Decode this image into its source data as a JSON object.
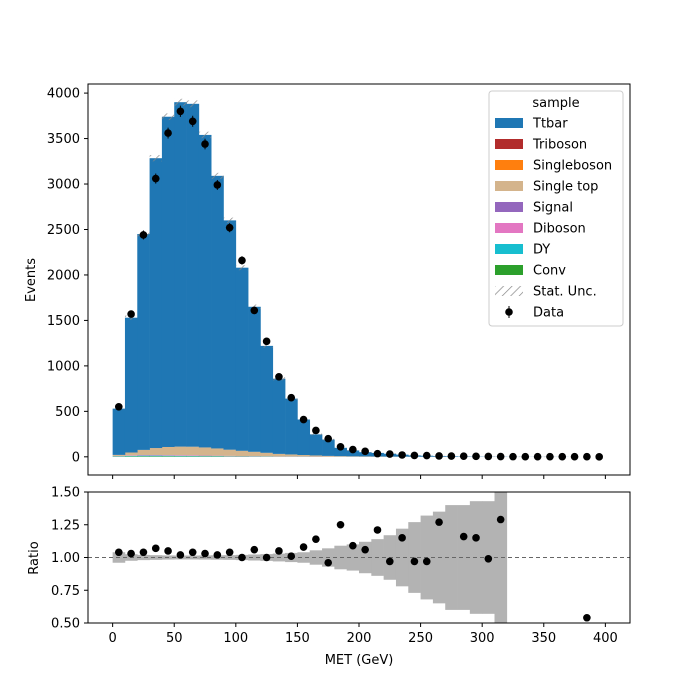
{
  "chart_data": [
    {
      "type": "stacked-histogram",
      "title": "",
      "xlabel": "",
      "ylabel": "Events",
      "xlim": [
        -20,
        420
      ],
      "ylim": [
        -200,
        4100
      ],
      "x_ticks": [
        0,
        50,
        100,
        150,
        200,
        250,
        300,
        350,
        400
      ],
      "y_ticks": [
        0,
        500,
        1000,
        1500,
        2000,
        2500,
        3000,
        3500,
        4000
      ],
      "bin_edges": [
        0,
        10,
        20,
        30,
        40,
        50,
        60,
        70,
        80,
        90,
        100,
        110,
        120,
        130,
        140,
        150,
        160,
        170,
        180,
        190,
        200,
        210,
        220,
        230,
        240,
        250,
        260,
        270,
        280,
        290,
        300,
        310,
        320,
        330,
        340,
        350,
        360,
        370,
        380,
        390,
        400
      ],
      "bin_centers": [
        5,
        15,
        25,
        35,
        45,
        55,
        65,
        75,
        85,
        95,
        105,
        115,
        125,
        135,
        145,
        155,
        165,
        175,
        185,
        195,
        205,
        215,
        225,
        235,
        245,
        255,
        265,
        275,
        285,
        295,
        305,
        315,
        325,
        335,
        345,
        355,
        365,
        375,
        385,
        395
      ],
      "series": [
        {
          "name": "Conv",
          "color": "#2ca02c",
          "values": [
            3,
            5,
            6,
            6,
            6,
            5,
            5,
            4,
            4,
            3,
            3,
            2,
            2,
            1,
            1,
            1,
            1,
            0,
            0,
            0,
            0,
            0,
            0,
            0,
            0,
            0,
            0,
            0,
            0,
            0,
            0,
            0,
            0,
            0,
            0,
            0,
            0,
            0,
            0,
            0
          ]
        },
        {
          "name": "DY",
          "color": "#17becf",
          "values": [
            4,
            6,
            7,
            7,
            6,
            6,
            5,
            4,
            4,
            3,
            2,
            2,
            2,
            1,
            1,
            1,
            0,
            0,
            0,
            0,
            0,
            0,
            0,
            0,
            0,
            0,
            0,
            0,
            0,
            0,
            0,
            0,
            0,
            0,
            0,
            0,
            0,
            0,
            0,
            0
          ]
        },
        {
          "name": "Diboson",
          "color": "#e377c2",
          "values": [
            2,
            3,
            4,
            4,
            4,
            4,
            4,
            3,
            3,
            3,
            2,
            2,
            2,
            1,
            1,
            1,
            1,
            1,
            0,
            0,
            0,
            0,
            0,
            0,
            0,
            0,
            0,
            0,
            0,
            0,
            0,
            0,
            0,
            0,
            0,
            0,
            0,
            0,
            0,
            0
          ]
        },
        {
          "name": "Signal",
          "color": "#9467bd",
          "values": [
            1,
            2,
            3,
            3,
            3,
            3,
            3,
            3,
            2,
            2,
            2,
            2,
            1,
            1,
            1,
            1,
            1,
            0,
            0,
            0,
            0,
            0,
            0,
            0,
            0,
            0,
            0,
            0,
            0,
            0,
            0,
            0,
            0,
            0,
            0,
            0,
            0,
            0,
            0,
            0
          ]
        },
        {
          "name": "Single top",
          "color": "#d4b48c",
          "values": [
            10,
            30,
            55,
            75,
            88,
            93,
            93,
            88,
            78,
            66,
            56,
            46,
            36,
            28,
            22,
            16,
            12,
            9,
            7,
            5,
            4,
            3,
            2,
            2,
            1,
            1,
            1,
            0,
            0,
            0,
            0,
            0,
            0,
            0,
            0,
            0,
            0,
            0,
            0,
            0
          ]
        },
        {
          "name": "Singleboson",
          "color": "#ff7f0e",
          "values": [
            1,
            1,
            1,
            1,
            1,
            1,
            1,
            1,
            1,
            1,
            1,
            1,
            1,
            0,
            0,
            0,
            0,
            0,
            0,
            0,
            0,
            0,
            0,
            0,
            0,
            0,
            0,
            0,
            0,
            0,
            0,
            0,
            0,
            0,
            0,
            0,
            0,
            0,
            0,
            0
          ]
        },
        {
          "name": "Triboson",
          "color": "#b22c2c",
          "values": [
            0,
            0,
            0,
            0,
            0,
            0,
            0,
            0,
            0,
            0,
            0,
            0,
            0,
            0,
            0,
            0,
            0,
            0,
            0,
            0,
            0,
            0,
            0,
            0,
            0,
            0,
            0,
            0,
            0,
            0,
            0,
            0,
            0,
            0,
            0,
            0,
            0,
            0,
            0,
            0
          ]
        },
        {
          "name": "Ttbar",
          "color": "#1f77b4",
          "values": [
            509,
            1483,
            2374,
            3188,
            3632,
            3788,
            3771,
            3437,
            2998,
            2522,
            2014,
            1595,
            1176,
            827,
            614,
            390,
            232,
            180,
            92,
            65,
            47,
            40,
            32,
            22,
            14,
            11,
            8,
            6,
            4,
            3,
            2,
            2,
            1,
            1,
            1,
            1,
            1,
            0,
            0,
            0
          ]
        }
      ],
      "uncertainty_label": "Stat. Unc.",
      "data": {
        "name": "Data",
        "values": [
          550,
          1570,
          2440,
          3060,
          3560,
          3800,
          3690,
          3440,
          2990,
          2520,
          2160,
          1610,
          1270,
          880,
          650,
          410,
          290,
          200,
          110,
          80,
          60,
          35,
          30,
          20,
          15,
          14,
          10,
          8,
          7,
          5,
          4,
          3,
          2,
          1,
          1,
          1,
          1,
          1,
          1,
          0
        ]
      },
      "legend": {
        "title": "sample",
        "placement": "upper-right"
      }
    },
    {
      "type": "scatter",
      "title": "",
      "xlabel": "MET (GeV)",
      "ylabel": "Ratio",
      "xlim": [
        -20,
        420
      ],
      "ylim": [
        0.5,
        1.5
      ],
      "x_ticks": [
        0,
        50,
        100,
        150,
        200,
        250,
        300,
        350,
        400
      ],
      "y_ticks": [
        "0.50",
        "0.75",
        "1.00",
        "1.25",
        "1.50"
      ],
      "reference_line": 1.0,
      "uncertainty_band": {
        "bin_edges": [
          0,
          10,
          20,
          30,
          40,
          50,
          60,
          70,
          80,
          90,
          100,
          110,
          120,
          130,
          140,
          150,
          160,
          170,
          180,
          190,
          200,
          210,
          220,
          230,
          240,
          250,
          260,
          270,
          280,
          290,
          300,
          310,
          320
        ],
        "half_width": [
          0.04,
          0.025,
          0.02,
          0.018,
          0.016,
          0.015,
          0.015,
          0.016,
          0.017,
          0.018,
          0.02,
          0.023,
          0.026,
          0.03,
          0.035,
          0.04,
          0.055,
          0.07,
          0.09,
          0.1,
          0.12,
          0.14,
          0.17,
          0.22,
          0.27,
          0.32,
          0.35,
          0.4,
          0.4,
          0.43,
          0.43,
          0.6
        ]
      },
      "points": {
        "x": [
          5,
          15,
          25,
          35,
          45,
          55,
          65,
          75,
          85,
          95,
          105,
          115,
          125,
          135,
          145,
          155,
          165,
          175,
          185,
          195,
          205,
          215,
          225,
          235,
          245,
          255,
          265,
          285,
          295,
          305,
          315,
          385
        ],
        "y": [
          1.04,
          1.03,
          1.04,
          1.07,
          1.05,
          1.02,
          1.04,
          1.03,
          1.02,
          1.04,
          1.0,
          1.06,
          1.0,
          1.05,
          1.01,
          1.08,
          1.14,
          0.96,
          1.25,
          1.09,
          1.06,
          1.21,
          0.97,
          1.15,
          0.97,
          0.97,
          1.27,
          1.16,
          1.15,
          0.99,
          1.29,
          0.54
        ]
      }
    }
  ]
}
